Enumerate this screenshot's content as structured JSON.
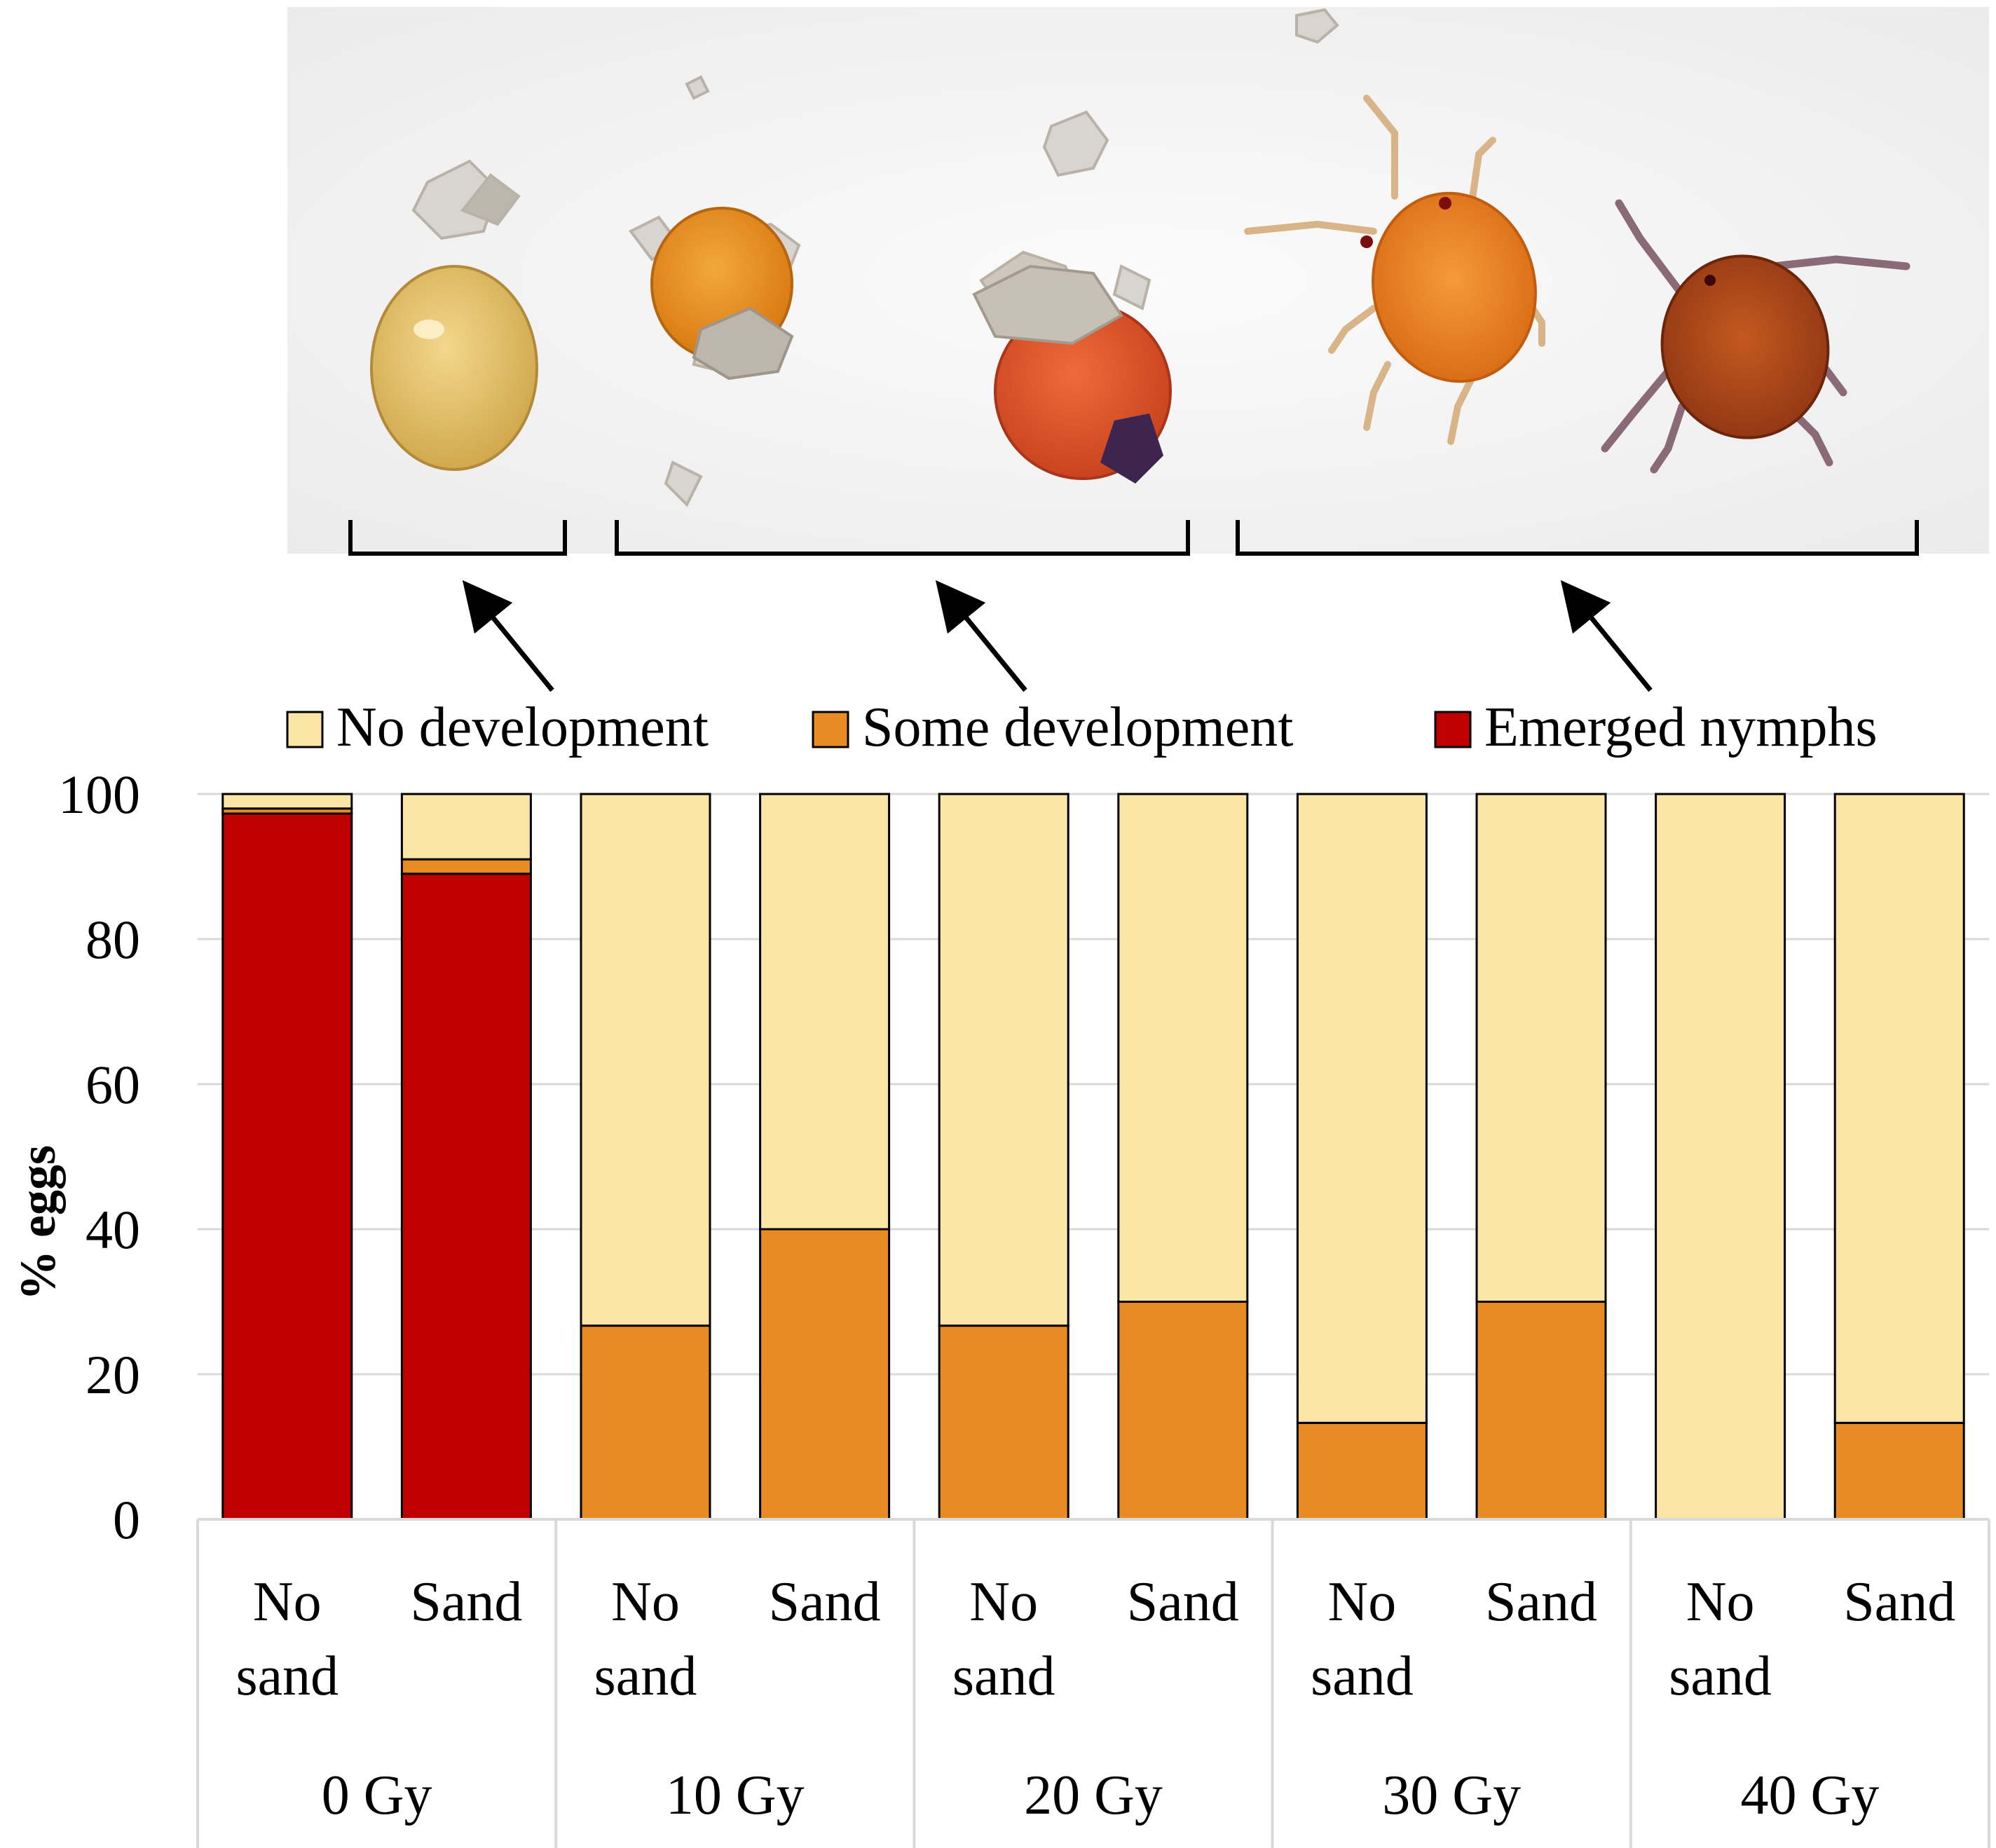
{
  "chart_data": {
    "type": "bar",
    "stacked": true,
    "title": "",
    "xlabel": "",
    "ylabel": "% eggs",
    "ylim": [
      0,
      100
    ],
    "yticks": [
      0,
      20,
      40,
      60,
      80,
      100
    ],
    "grid": true,
    "legend_position": "top",
    "categories": [
      {
        "label": "No sand",
        "group": "0 Gy"
      },
      {
        "label": "Sand",
        "group": "0 Gy"
      },
      {
        "label": "No sand",
        "group": "10 Gy"
      },
      {
        "label": "Sand",
        "group": "10 Gy"
      },
      {
        "label": "No sand",
        "group": "20 Gy"
      },
      {
        "label": "Sand",
        "group": "20 Gy"
      },
      {
        "label": "No sand",
        "group": "30 Gy"
      },
      {
        "label": "Sand",
        "group": "30 Gy"
      },
      {
        "label": "No sand",
        "group": "40 Gy"
      },
      {
        "label": "Sand",
        "group": "40 Gy"
      }
    ],
    "groups": [
      "0 Gy",
      "10 Gy",
      "20 Gy",
      "30 Gy",
      "40 Gy"
    ],
    "series": [
      {
        "name": "Emerged nymphs",
        "color": "#c00000",
        "values": [
          97.3,
          89.0,
          0,
          0,
          0,
          0,
          0,
          0,
          0,
          0
        ]
      },
      {
        "name": "Some development",
        "color": "#e98b25",
        "values": [
          0.7,
          2.0,
          26.7,
          40,
          26.7,
          30,
          13.3,
          30,
          0,
          13.3
        ]
      },
      {
        "name": "No development",
        "color": "#fbe5a6",
        "values": [
          2.0,
          9.0,
          73.3,
          60,
          73.3,
          70,
          86.7,
          70,
          100,
          86.7
        ]
      }
    ]
  },
  "photo": {
    "description_icons": [
      "unhatched-egg",
      "developing-egg",
      "developing-egg-with-sand",
      "emerged-nymph",
      "emerged-nymph-dark"
    ]
  }
}
